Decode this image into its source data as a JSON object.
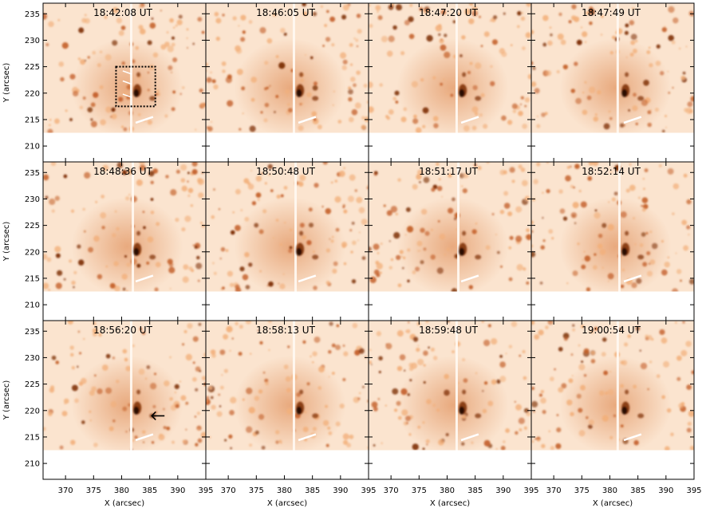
{
  "figure": {
    "panels": [
      {
        "time": "18:42:08 UT",
        "annot": "box"
      },
      {
        "time": "18:46:05 UT",
        "annot": ""
      },
      {
        "time": "18:47:20 UT",
        "annot": ""
      },
      {
        "time": "18:47:49 UT",
        "annot": ""
      },
      {
        "time": "18:48:36 UT",
        "annot": ""
      },
      {
        "time": "18:50:48 UT",
        "annot": ""
      },
      {
        "time": "18:51:17 UT",
        "annot": ""
      },
      {
        "time": "18:52:14 UT",
        "annot": ""
      },
      {
        "time": "18:56:20 UT",
        "annot": "arrow"
      },
      {
        "time": "18:58:13 UT",
        "annot": ""
      },
      {
        "time": "18:59:48 UT",
        "annot": ""
      },
      {
        "time": "19:00:54 UT",
        "annot": ""
      }
    ],
    "x_axis_label": "X (arcsec)",
    "y_axis_label": "Y (arcsec)",
    "x_ticks": [
      "370",
      "375",
      "380",
      "385",
      "390",
      "395"
    ],
    "y_ticks": [
      "210",
      "215",
      "220",
      "225",
      "230",
      "235"
    ],
    "x_range": [
      366,
      395
    ],
    "y_range": [
      207,
      237
    ],
    "colormap": {
      "light": "#fbe4cf",
      "mid": "#f2b07b",
      "dark": "#7a2a05",
      "darkest": "#2a0800"
    }
  }
}
